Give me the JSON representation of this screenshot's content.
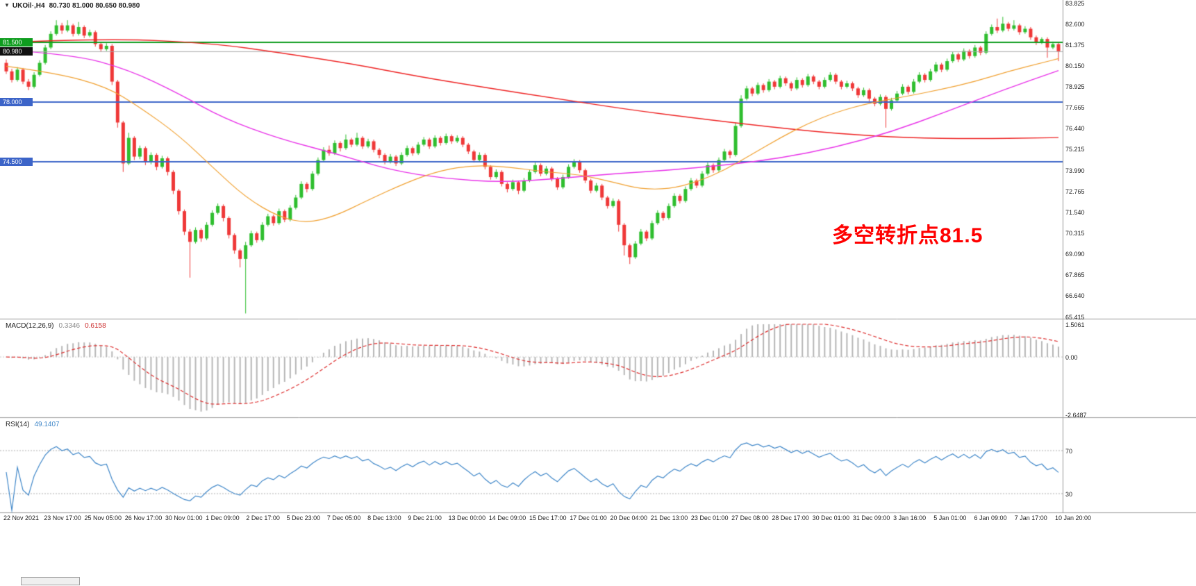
{
  "main_chart": {
    "symbol_timeframe": "UKOil·,H4",
    "ohlc_readout": "80.730 81.000 80.650 80.980",
    "annotation": {
      "text": "多空转折点81.5",
      "color": "#ff0000"
    },
    "current_price": {
      "value": 80.98,
      "label": "80.980",
      "line_color": "#a8a8a8",
      "tag_bg": "#111111"
    }
  },
  "chart_data": {
    "type": "candlestick",
    "symbol": "UKOil",
    "timeframe": "H4",
    "y_axis": {
      "max": 83.825,
      "min": 65.415,
      "labels": [
        "83.825",
        "82.600",
        "81.375",
        "80.150",
        "78.925",
        "77.665",
        "76.440",
        "75.215",
        "73.990",
        "72.765",
        "71.540",
        "70.315",
        "69.090",
        "67.865",
        "66.640",
        "65.415"
      ]
    },
    "x_axis_labels": [
      "22 Nov 2021",
      "23 Nov 17:00",
      "25 Nov 05:00",
      "26 Nov 17:00",
      "30 Nov 01:00",
      "1 Dec 09:00",
      "2 Dec 17:00",
      "5 Dec 23:00",
      "7 Dec 05:00",
      "8 Dec 13:00",
      "9 Dec 21:00",
      "13 Dec 00:00",
      "14 Dec 09:00",
      "15 Dec 17:00",
      "17 Dec 01:00",
      "20 Dec 04:00",
      "21 Dec 13:00",
      "23 Dec 01:00",
      "27 Dec 08:00",
      "28 Dec 17:00",
      "30 Dec 01:00",
      "31 Dec 09:00",
      "3 Jan 16:00",
      "5 Jan 01:00",
      "6 Jan 09:00",
      "7 Jan 17:00",
      "10 Jan 20:00"
    ],
    "colors": {
      "up": "#2fbe2f",
      "down": "#ef3838",
      "ma_fast": "#f0a030",
      "ma_mid": "#e832e8",
      "ma_slow": "#ee2222"
    },
    "hlines": [
      {
        "price": 81.5,
        "label": "81.500",
        "color": "#0f9d1f",
        "width": 2
      },
      {
        "price": 78.0,
        "label": "78.000",
        "color": "#3c64c8",
        "width": 2
      },
      {
        "price": 74.5,
        "label": "74.500",
        "color": "#3c64c8",
        "width": 2
      }
    ],
    "ohlc": [
      [
        80.3,
        80.5,
        79.65,
        79.8
      ],
      [
        79.8,
        79.95,
        79.15,
        79.3
      ],
      [
        79.3,
        80.05,
        79.2,
        79.9
      ],
      [
        79.9,
        80.0,
        79.05,
        79.2
      ],
      [
        79.2,
        79.35,
        78.7,
        78.9
      ],
      [
        78.9,
        79.75,
        78.8,
        79.6
      ],
      [
        79.6,
        80.45,
        79.5,
        80.3
      ],
      [
        80.3,
        81.35,
        80.2,
        81.2
      ],
      [
        81.2,
        82.15,
        81.1,
        82.0
      ],
      [
        82.0,
        82.8,
        81.9,
        82.5
      ],
      [
        82.5,
        82.65,
        82.0,
        82.2
      ],
      [
        82.2,
        82.8,
        82.1,
        82.5
      ],
      [
        82.5,
        82.6,
        81.85,
        82.0
      ],
      [
        82.0,
        82.7,
        81.9,
        82.4
      ],
      [
        82.4,
        82.5,
        81.75,
        81.9
      ],
      [
        81.9,
        82.25,
        81.8,
        82.1
      ],
      [
        82.1,
        82.2,
        81.25,
        81.4
      ],
      [
        81.4,
        81.5,
        80.95,
        81.1
      ],
      [
        81.1,
        81.45,
        81.0,
        81.3
      ],
      [
        81.3,
        81.4,
        79.0,
        79.2
      ],
      [
        79.2,
        79.3,
        76.5,
        76.8
      ],
      [
        76.8,
        76.9,
        73.9,
        74.4
      ],
      [
        74.4,
        76.2,
        74.3,
        75.9
      ],
      [
        75.9,
        76.0,
        74.6,
        74.8
      ],
      [
        74.8,
        75.45,
        74.65,
        75.3
      ],
      [
        75.3,
        75.4,
        74.3,
        74.5
      ],
      [
        74.5,
        75.05,
        74.35,
        74.9
      ],
      [
        74.9,
        75.0,
        74.0,
        74.2
      ],
      [
        74.2,
        74.85,
        74.1,
        74.7
      ],
      [
        74.7,
        74.8,
        73.7,
        73.9
      ],
      [
        73.9,
        74.0,
        72.6,
        72.8
      ],
      [
        72.8,
        72.9,
        71.4,
        71.6
      ],
      [
        71.6,
        71.7,
        70.2,
        70.4
      ],
      [
        70.4,
        70.55,
        67.7,
        69.8
      ],
      [
        69.8,
        70.65,
        69.7,
        70.5
      ],
      [
        70.5,
        70.6,
        69.8,
        70.0
      ],
      [
        70.0,
        70.95,
        69.9,
        70.8
      ],
      [
        70.8,
        71.65,
        70.7,
        71.5
      ],
      [
        71.5,
        72.05,
        71.4,
        71.9
      ],
      [
        71.9,
        72.0,
        71.0,
        71.2
      ],
      [
        71.2,
        71.3,
        70.0,
        70.2
      ],
      [
        70.2,
        70.3,
        69.1,
        69.3
      ],
      [
        69.3,
        69.4,
        68.3,
        68.8
      ],
      [
        68.8,
        69.8,
        65.6,
        69.6
      ],
      [
        69.6,
        70.45,
        69.5,
        70.3
      ],
      [
        70.3,
        70.4,
        69.75,
        69.9
      ],
      [
        69.9,
        70.95,
        69.8,
        70.8
      ],
      [
        70.8,
        71.45,
        70.7,
        71.3
      ],
      [
        71.3,
        71.4,
        70.75,
        70.9
      ],
      [
        70.9,
        71.75,
        70.8,
        71.6
      ],
      [
        71.6,
        71.7,
        70.95,
        71.1
      ],
      [
        71.1,
        71.95,
        71.0,
        71.8
      ],
      [
        71.8,
        72.55,
        71.7,
        72.4
      ],
      [
        72.4,
        73.35,
        72.3,
        73.2
      ],
      [
        73.2,
        73.3,
        72.7,
        72.9
      ],
      [
        72.9,
        73.95,
        72.8,
        73.8
      ],
      [
        73.8,
        74.75,
        73.7,
        74.6
      ],
      [
        74.6,
        75.35,
        74.5,
        75.2
      ],
      [
        75.2,
        75.45,
        74.85,
        75.0
      ],
      [
        75.0,
        75.75,
        74.9,
        75.6
      ],
      [
        75.6,
        75.7,
        75.1,
        75.3
      ],
      [
        75.3,
        76.1,
        75.2,
        75.8
      ],
      [
        75.8,
        75.9,
        75.35,
        75.5
      ],
      [
        75.5,
        76.2,
        75.4,
        75.9
      ],
      [
        75.9,
        76.0,
        75.25,
        75.4
      ],
      [
        75.4,
        75.85,
        75.3,
        75.7
      ],
      [
        75.7,
        75.8,
        75.05,
        75.2
      ],
      [
        75.2,
        75.3,
        74.7,
        74.9
      ],
      [
        74.9,
        75.0,
        74.35,
        74.5
      ],
      [
        74.5,
        74.95,
        74.4,
        74.8
      ],
      [
        74.8,
        74.9,
        74.25,
        74.4
      ],
      [
        74.4,
        75.05,
        74.3,
        74.9
      ],
      [
        74.9,
        75.45,
        74.8,
        75.3
      ],
      [
        75.3,
        75.4,
        74.85,
        75.0
      ],
      [
        75.0,
        75.65,
        74.9,
        75.5
      ],
      [
        75.5,
        75.95,
        75.4,
        75.8
      ],
      [
        75.8,
        75.9,
        75.25,
        75.4
      ],
      [
        75.4,
        76.05,
        75.3,
        75.9
      ],
      [
        75.9,
        76.0,
        75.45,
        75.6
      ],
      [
        75.6,
        76.15,
        75.5,
        76.0
      ],
      [
        76.0,
        76.1,
        75.55,
        75.7
      ],
      [
        75.7,
        76.05,
        75.6,
        75.9
      ],
      [
        75.9,
        76.0,
        75.35,
        75.5
      ],
      [
        75.5,
        75.6,
        74.95,
        75.1
      ],
      [
        75.1,
        75.2,
        74.45,
        74.6
      ],
      [
        74.6,
        75.05,
        74.5,
        74.9
      ],
      [
        74.9,
        75.0,
        74.05,
        74.2
      ],
      [
        74.2,
        74.3,
        73.45,
        73.6
      ],
      [
        73.6,
        74.05,
        73.5,
        73.9
      ],
      [
        73.9,
        74.0,
        73.05,
        73.2
      ],
      [
        73.2,
        73.3,
        72.7,
        72.9
      ],
      [
        72.9,
        73.45,
        72.8,
        73.3
      ],
      [
        73.3,
        73.4,
        72.6,
        72.8
      ],
      [
        72.8,
        73.55,
        72.7,
        73.4
      ],
      [
        73.4,
        74.05,
        73.3,
        73.9
      ],
      [
        73.9,
        74.45,
        73.8,
        74.3
      ],
      [
        74.3,
        74.4,
        73.65,
        73.8
      ],
      [
        73.8,
        74.25,
        73.7,
        74.1
      ],
      [
        74.1,
        74.2,
        73.35,
        73.5
      ],
      [
        73.5,
        73.6,
        72.85,
        73.0
      ],
      [
        73.0,
        73.75,
        72.9,
        73.6
      ],
      [
        73.6,
        74.35,
        73.5,
        74.2
      ],
      [
        74.2,
        74.65,
        74.1,
        74.5
      ],
      [
        74.5,
        74.6,
        73.85,
        74.0
      ],
      [
        74.0,
        74.1,
        73.25,
        73.4
      ],
      [
        73.4,
        73.5,
        72.65,
        72.8
      ],
      [
        72.8,
        73.25,
        72.7,
        73.1
      ],
      [
        73.1,
        73.2,
        72.25,
        72.4
      ],
      [
        72.4,
        72.5,
        71.75,
        71.9
      ],
      [
        71.9,
        72.35,
        71.8,
        72.2
      ],
      [
        72.2,
        72.3,
        70.4,
        70.8
      ],
      [
        70.8,
        70.9,
        69.0,
        69.6
      ],
      [
        69.6,
        69.7,
        68.5,
        68.9
      ],
      [
        68.9,
        69.85,
        68.8,
        69.7
      ],
      [
        69.7,
        70.55,
        69.6,
        70.4
      ],
      [
        70.4,
        70.5,
        69.85,
        70.0
      ],
      [
        70.0,
        71.05,
        69.9,
        70.9
      ],
      [
        70.9,
        71.65,
        70.8,
        71.5
      ],
      [
        71.5,
        71.6,
        71.05,
        71.2
      ],
      [
        71.2,
        72.05,
        71.1,
        71.9
      ],
      [
        71.9,
        72.65,
        71.8,
        72.5
      ],
      [
        72.5,
        72.6,
        72.05,
        72.2
      ],
      [
        72.2,
        73.05,
        72.1,
        72.9
      ],
      [
        72.9,
        73.55,
        72.8,
        73.4
      ],
      [
        73.4,
        73.5,
        72.95,
        73.1
      ],
      [
        73.1,
        73.95,
        73.0,
        73.8
      ],
      [
        73.8,
        74.45,
        73.7,
        74.3
      ],
      [
        74.3,
        74.4,
        73.85,
        74.0
      ],
      [
        74.0,
        74.75,
        73.9,
        74.6
      ],
      [
        74.6,
        75.25,
        74.5,
        75.1
      ],
      [
        75.1,
        75.2,
        74.7,
        74.9
      ],
      [
        74.9,
        76.8,
        74.8,
        76.6
      ],
      [
        76.6,
        78.4,
        76.5,
        78.2
      ],
      [
        78.2,
        78.95,
        78.1,
        78.8
      ],
      [
        78.8,
        78.9,
        78.35,
        78.5
      ],
      [
        78.5,
        79.15,
        78.4,
        79.0
      ],
      [
        79.0,
        79.1,
        78.55,
        78.7
      ],
      [
        78.7,
        79.35,
        78.6,
        79.2
      ],
      [
        79.2,
        79.3,
        78.75,
        78.9
      ],
      [
        78.9,
        79.55,
        78.8,
        79.4
      ],
      [
        79.4,
        79.5,
        78.95,
        79.1
      ],
      [
        79.1,
        79.2,
        78.65,
        78.8
      ],
      [
        78.8,
        79.45,
        78.7,
        79.3
      ],
      [
        79.3,
        79.4,
        78.85,
        79.0
      ],
      [
        79.0,
        79.65,
        78.9,
        79.5
      ],
      [
        79.5,
        79.6,
        79.05,
        79.2
      ],
      [
        79.2,
        79.3,
        78.75,
        78.9
      ],
      [
        78.9,
        79.45,
        78.8,
        79.3
      ],
      [
        79.3,
        79.75,
        79.2,
        79.6
      ],
      [
        79.6,
        79.7,
        79.05,
        79.2
      ],
      [
        79.2,
        79.3,
        78.75,
        78.9
      ],
      [
        78.9,
        79.25,
        78.8,
        79.1
      ],
      [
        79.1,
        79.2,
        78.65,
        78.8
      ],
      [
        78.8,
        78.9,
        78.25,
        78.4
      ],
      [
        78.4,
        78.85,
        78.3,
        78.7
      ],
      [
        78.7,
        78.8,
        78.05,
        78.2
      ],
      [
        78.2,
        78.3,
        77.75,
        77.9
      ],
      [
        77.9,
        78.45,
        77.8,
        78.3
      ],
      [
        78.3,
        78.4,
        76.5,
        77.6
      ],
      [
        77.6,
        78.25,
        77.5,
        78.1
      ],
      [
        78.1,
        78.65,
        78.0,
        78.5
      ],
      [
        78.5,
        79.05,
        78.4,
        78.9
      ],
      [
        78.9,
        79.0,
        78.45,
        78.6
      ],
      [
        78.6,
        79.35,
        78.5,
        79.2
      ],
      [
        79.2,
        79.75,
        79.1,
        79.6
      ],
      [
        79.6,
        79.7,
        79.15,
        79.3
      ],
      [
        79.3,
        79.95,
        79.2,
        79.8
      ],
      [
        79.8,
        80.35,
        79.7,
        80.2
      ],
      [
        80.2,
        80.3,
        79.75,
        79.9
      ],
      [
        79.9,
        80.55,
        79.8,
        80.4
      ],
      [
        80.4,
        80.95,
        80.3,
        80.8
      ],
      [
        80.8,
        80.9,
        80.35,
        80.5
      ],
      [
        80.5,
        81.15,
        80.4,
        81.0
      ],
      [
        81.0,
        81.1,
        80.55,
        80.7
      ],
      [
        80.7,
        81.35,
        80.6,
        81.2
      ],
      [
        81.2,
        81.3,
        80.75,
        80.9
      ],
      [
        80.9,
        82.15,
        80.8,
        82.0
      ],
      [
        82.0,
        82.55,
        81.9,
        82.4
      ],
      [
        82.4,
        82.9,
        82.05,
        82.2
      ],
      [
        82.2,
        83.0,
        82.1,
        82.6
      ],
      [
        82.6,
        82.7,
        82.15,
        82.3
      ],
      [
        82.3,
        82.8,
        82.2,
        82.5
      ],
      [
        82.5,
        82.6,
        81.95,
        82.1
      ],
      [
        82.1,
        82.45,
        82.0,
        82.3
      ],
      [
        82.3,
        82.4,
        81.65,
        81.8
      ],
      [
        81.8,
        81.9,
        81.35,
        81.5
      ],
      [
        81.5,
        81.8,
        81.4,
        81.7
      ],
      [
        81.7,
        81.8,
        80.6,
        81.2
      ],
      [
        81.2,
        81.55,
        81.1,
        81.4
      ],
      [
        81.4,
        81.5,
        80.4,
        80.98
      ]
    ],
    "overlays": {
      "ma_slow": [
        [
          0,
          81.5
        ],
        [
          18,
          81.75
        ],
        [
          37,
          81.45
        ],
        [
          49,
          80.9
        ],
        [
          62,
          80.25
        ],
        [
          74,
          79.5
        ],
        [
          87,
          78.8
        ],
        [
          99,
          78.2
        ],
        [
          112,
          77.55
        ],
        [
          124,
          77.05
        ],
        [
          137,
          76.55
        ],
        [
          149,
          76.15
        ],
        [
          162,
          75.9
        ],
        [
          174,
          75.85
        ],
        [
          186,
          75.9
        ],
        [
          189,
          75.92
        ]
      ],
      "ma_mid": [
        [
          0,
          81.05
        ],
        [
          12,
          80.8
        ],
        [
          22,
          79.9
        ],
        [
          31,
          78.5
        ],
        [
          39,
          77.05
        ],
        [
          49,
          75.85
        ],
        [
          59,
          75.0
        ],
        [
          69,
          74.0
        ],
        [
          79,
          73.5
        ],
        [
          89,
          73.3
        ],
        [
          99,
          73.5
        ],
        [
          109,
          73.8
        ],
        [
          119,
          74.0
        ],
        [
          129,
          74.3
        ],
        [
          139,
          74.7
        ],
        [
          149,
          75.35
        ],
        [
          159,
          76.25
        ],
        [
          169,
          77.45
        ],
        [
          179,
          78.7
        ],
        [
          189,
          79.85
        ]
      ],
      "ma_fast": [
        [
          0,
          80.1
        ],
        [
          9,
          79.7
        ],
        [
          18,
          78.9
        ],
        [
          24,
          77.7
        ],
        [
          31,
          76.05
        ],
        [
          37,
          74.2
        ],
        [
          43,
          72.4
        ],
        [
          49,
          71.25
        ],
        [
          54,
          70.9
        ],
        [
          59,
          71.3
        ],
        [
          65,
          72.25
        ],
        [
          72,
          73.3
        ],
        [
          78,
          74.0
        ],
        [
          84,
          74.3
        ],
        [
          90,
          74.2
        ],
        [
          97,
          73.9
        ],
        [
          103,
          73.75
        ],
        [
          109,
          73.3
        ],
        [
          114,
          72.9
        ],
        [
          119,
          72.9
        ],
        [
          124,
          73.3
        ],
        [
          129,
          74.0
        ],
        [
          134,
          74.95
        ],
        [
          139,
          75.9
        ],
        [
          144,
          76.75
        ],
        [
          149,
          77.4
        ],
        [
          155,
          77.95
        ],
        [
          162,
          78.35
        ],
        [
          168,
          78.75
        ],
        [
          174,
          79.2
        ],
        [
          180,
          79.8
        ],
        [
          186,
          80.3
        ],
        [
          189,
          80.55
        ]
      ]
    },
    "indicators": {
      "macd": {
        "label": "MACD(12,26,9)",
        "value_macd": "0.3346",
        "value_signal": "0.6158",
        "scale_max": 1.5061,
        "scale_min": -2.6487,
        "scale_labels": [
          "1.5061",
          "0.00",
          "-2.6487"
        ],
        "hist_color": "#b6b6b6",
        "signal_color": "#dd2c2c"
      },
      "rsi": {
        "label": "RSI(14)",
        "value": "49.1407",
        "levels": [
          70,
          30
        ],
        "level_labels": [
          "70",
          "30"
        ],
        "color": "#3e86c8"
      }
    }
  }
}
